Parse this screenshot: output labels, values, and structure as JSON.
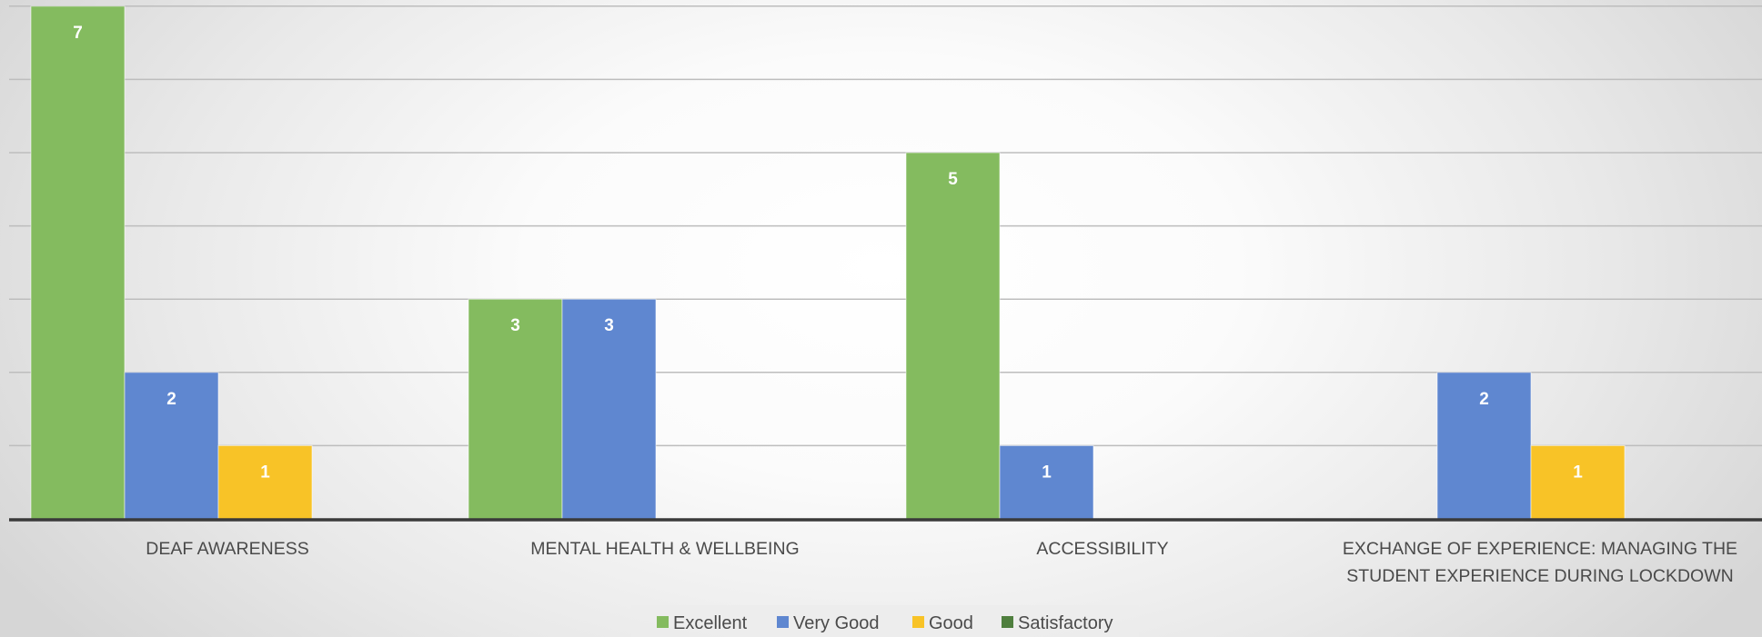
{
  "chart_data": {
    "type": "bar",
    "categories": [
      "DEAF AWARENESS",
      "MENTAL HEALTH & WELLBEING",
      "ACCESSIBILITY",
      "EXCHANGE OF EXPERIENCE: MANAGING THE STUDENT EXPERIENCE DURING LOCKDOWN"
    ],
    "series": [
      {
        "name": "Excellent",
        "color": "#84bb5f",
        "values": [
          7,
          3,
          5,
          0
        ]
      },
      {
        "name": "Very Good",
        "color": "#5f87d0",
        "values": [
          2,
          3,
          1,
          2
        ]
      },
      {
        "name": "Good",
        "color": "#f8c327",
        "values": [
          1,
          0,
          0,
          1
        ]
      },
      {
        "name": "Satisfactory",
        "color": "#4f7f3e",
        "values": [
          0,
          0,
          0,
          0
        ]
      }
    ],
    "ylim": [
      0,
      7
    ],
    "grid": true,
    "data_labels": true,
    "legend_position": "bottom"
  }
}
